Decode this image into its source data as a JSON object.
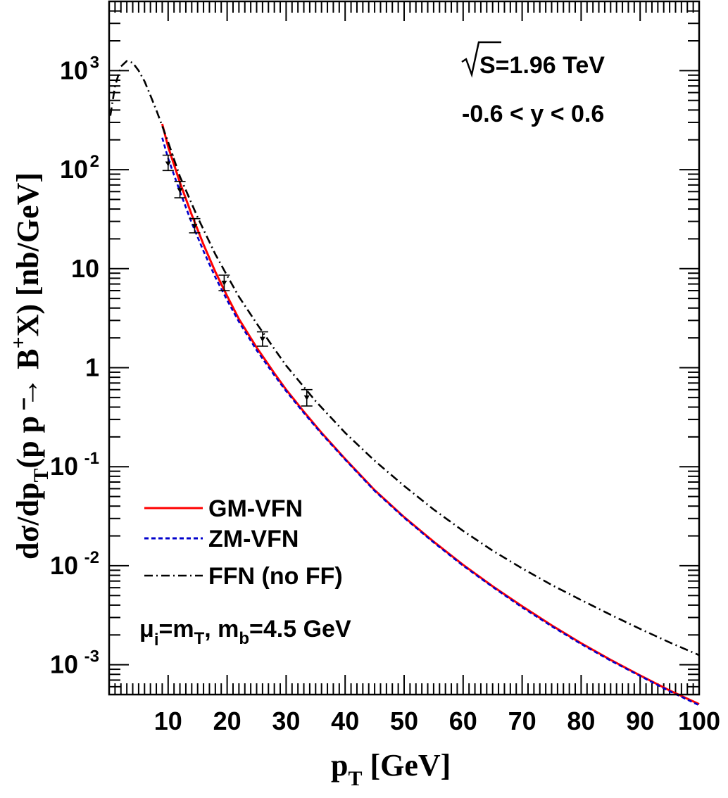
{
  "chart_data": {
    "type": "line",
    "xlabel": {
      "main": "p",
      "sub": "T",
      "rest": " [GeV]"
    },
    "ylabel": {
      "part1": "dσ/dp",
      "sub1": "T",
      "part2": "(p p → B",
      "sup": "+",
      "part3": "X) [nb/GeV]"
    },
    "xlim": [
      0,
      100
    ],
    "ylim": [
      0.0005,
      5000
    ],
    "yscale": "log",
    "x_ticks": [
      10,
      20,
      30,
      40,
      50,
      60,
      70,
      80,
      90,
      100
    ],
    "y_ticks": [
      {
        "value": 1000,
        "base": "10",
        "exp": "3"
      },
      {
        "value": 100,
        "base": "10",
        "exp": "2"
      },
      {
        "value": 10,
        "base": "10",
        "exp": ""
      },
      {
        "value": 1,
        "base": "1",
        "exp": ""
      },
      {
        "value": 0.1,
        "base": "10",
        "exp": "-1"
      },
      {
        "value": 0.01,
        "base": "10",
        "exp": "-2"
      },
      {
        "value": 0.001,
        "base": "10",
        "exp": "-3"
      }
    ],
    "annotations": {
      "energy": "S=1.96 TeV",
      "rapidity": "-0.6 < y < 0.6",
      "params_mu": "μ",
      "params_mu_sub": "i",
      "params_eq1": "=m",
      "params_mT_sub": "T",
      "params_mid": ", m",
      "params_mb_sub": "b",
      "params_end": "=4.5 GeV"
    },
    "legend_position": "bottom-left",
    "series": [
      {
        "name": "GM-VFN",
        "color": "#ff0000",
        "style": "solid",
        "x": [
          9,
          10,
          12,
          14,
          16,
          18,
          20,
          22,
          25,
          28,
          30,
          33,
          36,
          40,
          45,
          50,
          55,
          60,
          65,
          70,
          75,
          80,
          85,
          90,
          95,
          100
        ],
        "y": [
          290,
          170,
          74,
          35,
          17.5,
          9.3,
          5.3,
          3.1,
          1.6,
          0.88,
          0.6,
          0.36,
          0.22,
          0.12,
          0.058,
          0.031,
          0.0175,
          0.0102,
          0.0062,
          0.0039,
          0.0025,
          0.00165,
          0.00112,
          0.00078,
          0.00055,
          0.0004
        ]
      },
      {
        "name": "ZM-VFN",
        "color": "#0000cc",
        "style": "dashed",
        "x": [
          9,
          10,
          12,
          14,
          16,
          18,
          20,
          22,
          25,
          28,
          30,
          33,
          36,
          40,
          45,
          50,
          55,
          60,
          65,
          70,
          75,
          80,
          85,
          90,
          95,
          100
        ],
        "y": [
          210,
          130,
          60,
          29,
          15,
          8.2,
          4.8,
          2.9,
          1.5,
          0.84,
          0.58,
          0.35,
          0.215,
          0.118,
          0.057,
          0.0305,
          0.0172,
          0.01,
          0.0061,
          0.0038,
          0.00245,
          0.00162,
          0.0011,
          0.00077,
          0.00054,
          0.00039
        ]
      },
      {
        "name": "FFN (no FF)",
        "color": "#000000",
        "style": "dashdot",
        "x": [
          0.2,
          1,
          2,
          3,
          4,
          5,
          6,
          7,
          8,
          10,
          12,
          15,
          18,
          20,
          22,
          25,
          28,
          30,
          35,
          40,
          45,
          50,
          55,
          60,
          65,
          70,
          75,
          80,
          85,
          90,
          95,
          100
        ],
        "y": [
          350,
          700,
          1100,
          1250,
          1200,
          1000,
          780,
          560,
          400,
          190,
          85,
          33,
          14,
          8.5,
          5.2,
          2.8,
          1.55,
          1.05,
          0.46,
          0.22,
          0.115,
          0.064,
          0.037,
          0.0225,
          0.0142,
          0.0094,
          0.0064,
          0.0045,
          0.0032,
          0.0023,
          0.00168,
          0.00125
        ]
      }
    ],
    "data_points": {
      "x": [
        10,
        12,
        14.5,
        19.5,
        26,
        33.5
      ],
      "y": [
        115,
        62,
        27,
        7.2,
        1.95,
        0.5
      ],
      "err_lo": [
        98,
        52,
        23,
        6.0,
        1.65,
        0.41
      ],
      "err_hi": [
        140,
        76,
        32,
        8.6,
        2.3,
        0.6
      ]
    }
  }
}
